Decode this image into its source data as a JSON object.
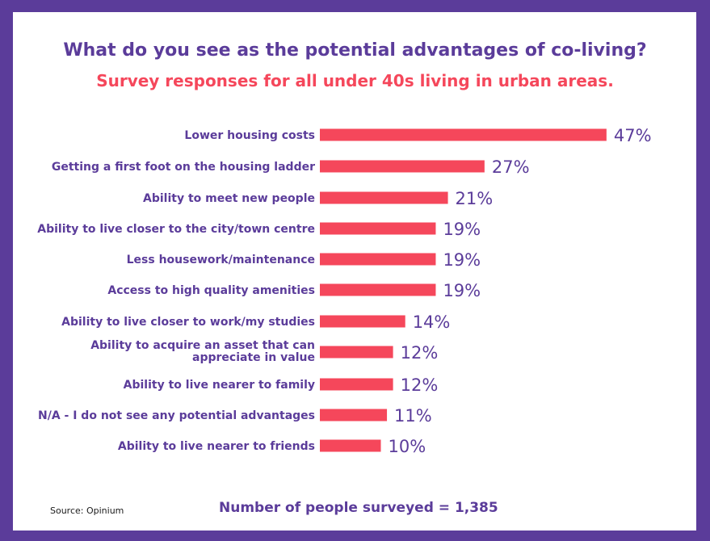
{
  "colors": {
    "frame": "#5b3c9a",
    "bar": "#f5475b",
    "text": "#5b3c9a"
  },
  "chart_data": {
    "type": "bar",
    "orientation": "horizontal",
    "title": "What do you see as the potential advantages of co-living?",
    "subtitle": "Survey responses for all under 40s living in urban areas.",
    "categories": [
      "Lower housing costs",
      "Getting a first foot on the housing ladder",
      "Ability to meet new people",
      "Ability to live closer to the city/town centre",
      "Less housework/maintenance",
      "Access to high quality amenities",
      "Ability to live closer to work/my studies",
      "Ability to acquire an asset that can appreciate in value",
      "Ability to live nearer to family",
      "N/A - I do not see any potential advantages",
      "Ability to live nearer to friends"
    ],
    "values": [
      47,
      27,
      21,
      19,
      19,
      19,
      14,
      12,
      12,
      11,
      10
    ],
    "value_labels": [
      "47%",
      "27%",
      "21%",
      "19%",
      "19%",
      "19%",
      "14%",
      "12%",
      "12%",
      "11%",
      "10%"
    ],
    "unit": "%",
    "grid": false,
    "legend": "none"
  },
  "footer": {
    "source": "Source: Opinium",
    "surveyed": "Number of people surveyed = 1,385"
  }
}
